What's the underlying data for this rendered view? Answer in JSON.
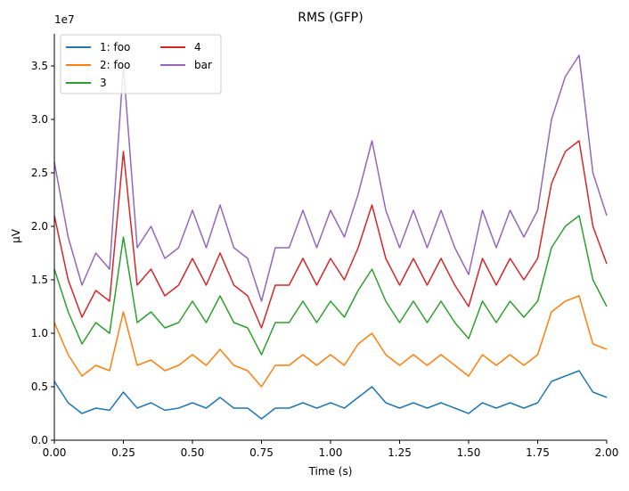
{
  "chart_data": {
    "type": "line",
    "title": "RMS (GFP)",
    "xlabel": "Time (s)",
    "ylabel": "µV",
    "y_offset_label": "1e7",
    "xlim": [
      0,
      2.0
    ],
    "ylim": [
      0,
      3.8
    ],
    "x_ticks": [
      "0.00",
      "0.25",
      "0.50",
      "0.75",
      "1.00",
      "1.25",
      "1.50",
      "1.75",
      "2.00"
    ],
    "y_ticks": [
      "0.0",
      "0.5",
      "1.0",
      "1.5",
      "2.0",
      "2.5",
      "3.0",
      "3.5"
    ],
    "grid": false,
    "legend": {
      "location": "upper-left",
      "columns": 2
    },
    "x": [
      0.0,
      0.05,
      0.1,
      0.15,
      0.2,
      0.25,
      0.3,
      0.35,
      0.4,
      0.45,
      0.5,
      0.55,
      0.6,
      0.65,
      0.7,
      0.75,
      0.8,
      0.85,
      0.9,
      0.95,
      1.0,
      1.05,
      1.1,
      1.15,
      1.2,
      1.25,
      1.3,
      1.35,
      1.4,
      1.45,
      1.5,
      1.55,
      1.6,
      1.65,
      1.7,
      1.75,
      1.8,
      1.85,
      1.9,
      1.95,
      2.0
    ],
    "series": [
      {
        "name": "1: foo",
        "color": "#1f77b4",
        "values": [
          0.55,
          0.35,
          0.25,
          0.3,
          0.28,
          0.45,
          0.3,
          0.35,
          0.28,
          0.3,
          0.35,
          0.3,
          0.4,
          0.3,
          0.3,
          0.2,
          0.3,
          0.3,
          0.35,
          0.3,
          0.35,
          0.3,
          0.4,
          0.5,
          0.35,
          0.3,
          0.35,
          0.3,
          0.35,
          0.3,
          0.25,
          0.35,
          0.3,
          0.35,
          0.3,
          0.35,
          0.55,
          0.6,
          0.65,
          0.45,
          0.4
        ]
      },
      {
        "name": "2: foo",
        "color": "#ff7f0e",
        "values": [
          1.1,
          0.8,
          0.6,
          0.7,
          0.65,
          1.2,
          0.7,
          0.75,
          0.65,
          0.7,
          0.8,
          0.7,
          0.85,
          0.7,
          0.65,
          0.5,
          0.7,
          0.7,
          0.8,
          0.7,
          0.8,
          0.7,
          0.9,
          1.0,
          0.8,
          0.7,
          0.8,
          0.7,
          0.8,
          0.7,
          0.6,
          0.8,
          0.7,
          0.8,
          0.7,
          0.8,
          1.2,
          1.3,
          1.35,
          0.9,
          0.85
        ]
      },
      {
        "name": "3",
        "color": "#2ca02c",
        "values": [
          1.6,
          1.2,
          0.9,
          1.1,
          1.0,
          1.9,
          1.1,
          1.2,
          1.05,
          1.1,
          1.3,
          1.1,
          1.35,
          1.1,
          1.05,
          0.8,
          1.1,
          1.1,
          1.3,
          1.1,
          1.3,
          1.15,
          1.4,
          1.6,
          1.3,
          1.1,
          1.3,
          1.1,
          1.3,
          1.1,
          0.95,
          1.3,
          1.1,
          1.3,
          1.15,
          1.3,
          1.8,
          2.0,
          2.1,
          1.5,
          1.25
        ]
      },
      {
        "name": "4",
        "color": "#d62728",
        "values": [
          2.1,
          1.5,
          1.15,
          1.4,
          1.3,
          2.7,
          1.45,
          1.6,
          1.35,
          1.45,
          1.7,
          1.45,
          1.75,
          1.45,
          1.35,
          1.05,
          1.45,
          1.45,
          1.7,
          1.45,
          1.7,
          1.5,
          1.8,
          2.2,
          1.7,
          1.45,
          1.7,
          1.45,
          1.7,
          1.45,
          1.25,
          1.7,
          1.45,
          1.7,
          1.5,
          1.7,
          2.4,
          2.7,
          2.8,
          2.0,
          1.65
        ]
      },
      {
        "name": "bar",
        "color": "#9467bd",
        "values": [
          2.6,
          1.9,
          1.45,
          1.75,
          1.6,
          3.5,
          1.8,
          2.0,
          1.7,
          1.8,
          2.15,
          1.8,
          2.2,
          1.8,
          1.7,
          1.3,
          1.8,
          1.8,
          2.15,
          1.8,
          2.15,
          1.9,
          2.3,
          2.8,
          2.15,
          1.8,
          2.15,
          1.8,
          2.15,
          1.8,
          1.55,
          2.15,
          1.8,
          2.15,
          1.9,
          2.15,
          3.0,
          3.4,
          3.6,
          2.5,
          2.1
        ]
      }
    ]
  }
}
